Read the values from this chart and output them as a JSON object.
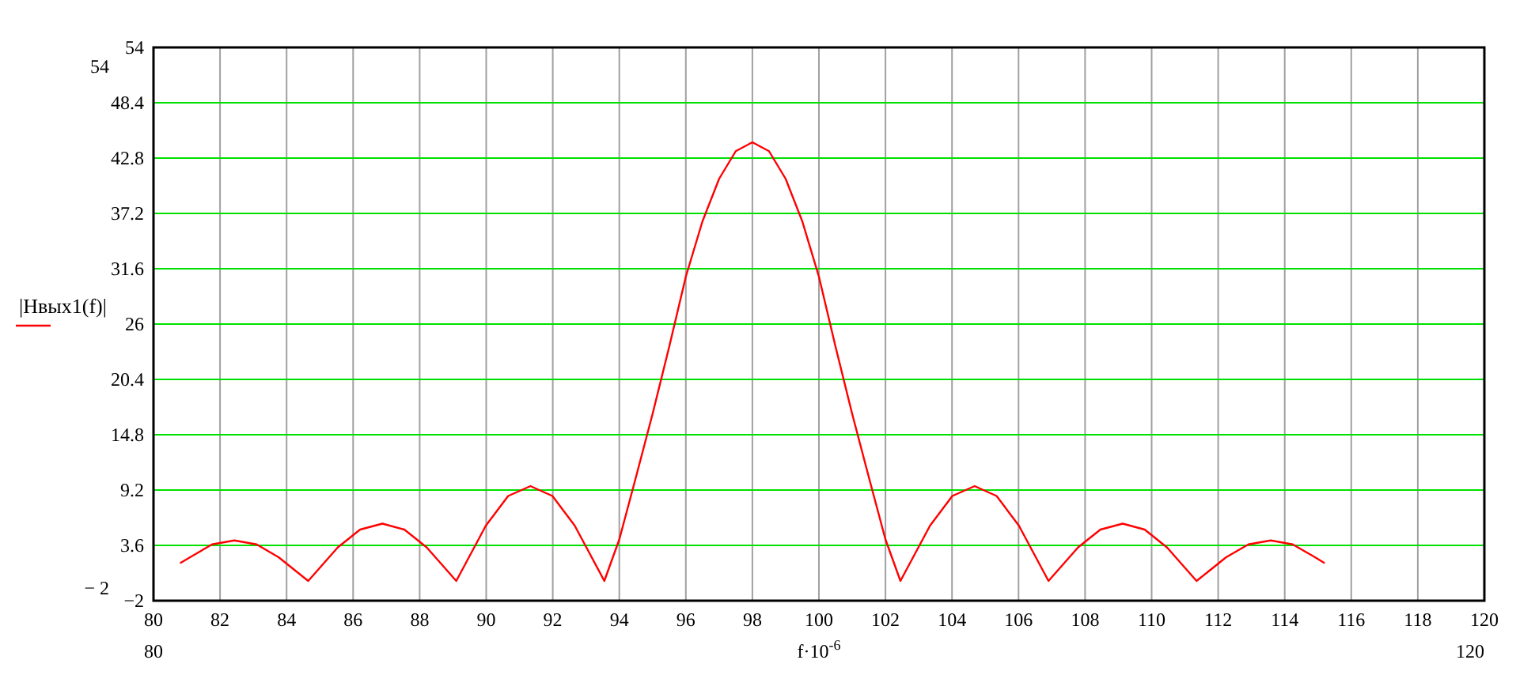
{
  "chart_data": {
    "type": "line",
    "xlabel": "f·10$^{-6}$",
    "legend": "left",
    "grid": true,
    "line_style": "solid",
    "marker": "none",
    "xlim": [
      80,
      120
    ],
    "xticks": [
      80,
      82,
      84,
      86,
      88,
      90,
      92,
      94,
      96,
      98,
      100,
      102,
      104,
      106,
      108,
      110,
      112,
      114,
      116,
      118,
      120
    ],
    "ylim": [
      -2,
      54
    ],
    "yticks": [
      {
        "value": -2,
        "label": "−2"
      },
      3.6,
      9.2,
      14.8,
      20.4,
      26,
      31.6,
      37.2,
      42.8,
      48.4,
      54
    ],
    "annotations": [
      "54",
      "− 2",
      "80",
      "120"
    ],
    "series": [
      {
        "name": "|Hвых1(f)|",
        "color": "#ff0000",
        "x": [
          80.8,
          81.1,
          81.76,
          82.43,
          83.1,
          83.76,
          84.65,
          85.54,
          86.21,
          86.88,
          87.54,
          88.21,
          89.1,
          89.99,
          90.66,
          91.33,
          91.99,
          92.66,
          93.55,
          94,
          94.5,
          95,
          95.5,
          96,
          96.5,
          97,
          97.5,
          98,
          98.5,
          99,
          99.5,
          100,
          100.5,
          101,
          101.5,
          102,
          102.45,
          103.34,
          104.01,
          104.68,
          105.34,
          106.01,
          106.9,
          107.79,
          108.46,
          109.13,
          109.79,
          110.46,
          111.35,
          112.24,
          112.91,
          113.58,
          114.24,
          114.91,
          115.2
        ],
        "values": [
          1.8,
          2.4,
          3.7,
          4.1,
          3.7,
          2.4,
          0,
          3.4,
          5.2,
          5.8,
          5.2,
          3.4,
          0,
          5.6,
          8.6,
          9.6,
          8.6,
          5.6,
          0,
          4.2,
          10.5,
          16.9,
          23.7,
          30.8,
          36.4,
          40.7,
          43.5,
          44.4,
          43.5,
          40.7,
          36.4,
          30.8,
          23.7,
          16.9,
          10.5,
          4.2,
          0,
          5.6,
          8.6,
          9.6,
          8.6,
          5.6,
          0,
          3.4,
          5.2,
          5.8,
          5.2,
          3.4,
          0,
          2.4,
          3.7,
          4.1,
          3.7,
          2.4,
          1.8
        ]
      }
    ]
  }
}
